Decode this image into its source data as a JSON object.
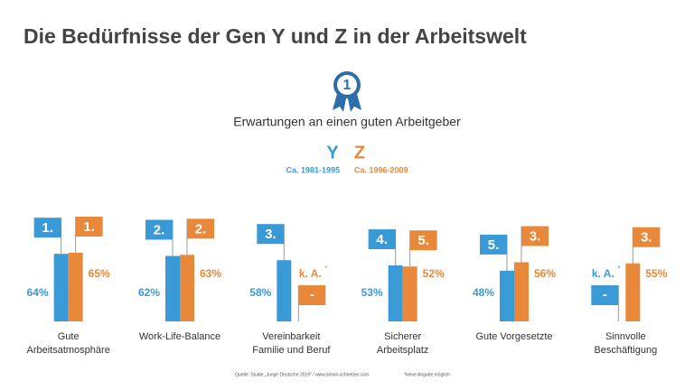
{
  "chart_data": {
    "type": "bar",
    "title": "Die Bedürfnisse der Gen Y und Z in der Arbeitswelt",
    "icon_label": "1",
    "subtitle": "Erwartungen an einen guten Arbeitgeber",
    "categories": [
      "Gute\nArbeitsatmosphäre",
      "Work-Life-Balance",
      "Vereinbarkeit\nFamilie und Beruf",
      "Sicherer\nArbeitsplatz",
      "Gute Vorgesetzte",
      "Sinnvolle\nBeschäftigung"
    ],
    "series": [
      {
        "name": "Y",
        "period": "Ca. 1981-1995",
        "color": "#3a9ad6",
        "values": [
          64,
          62,
          58,
          53,
          48,
          null
        ],
        "value_labels": [
          "64%",
          "62%",
          "58%",
          "53%",
          "48%",
          "k. A."
        ],
        "ranks": [
          "1.",
          "2.",
          "3.",
          "4.",
          "5.",
          "-"
        ]
      },
      {
        "name": "Z",
        "period": "Ca. 1996-2009",
        "color": "#e8883a",
        "values": [
          65,
          63,
          null,
          52,
          56,
          55
        ],
        "value_labels": [
          "65%",
          "63%",
          "k. A.",
          "52%",
          "56%",
          "55%"
        ],
        "ranks": [
          "1.",
          "2.",
          "-",
          "5.",
          "3.",
          "3."
        ]
      }
    ],
    "footnote_marker": "*",
    "source": "Quelle: Studie „Junge Deutsche 2019“ / www.simon-schnetzer.com",
    "footnote": "*keine Angabe möglich"
  }
}
